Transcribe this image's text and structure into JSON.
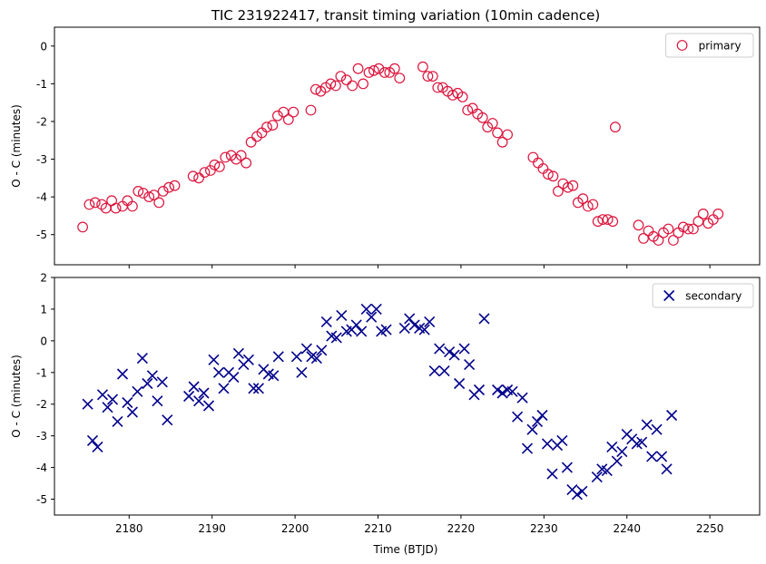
{
  "chart_data": [
    {
      "type": "scatter",
      "title": "TIC 231922417, transit timing variation (10min cadence)",
      "xlabel": "",
      "ylabel": "O - C (minutes)",
      "xlim": [
        2171,
        2256
      ],
      "ylim": [
        -5.8,
        0.5
      ],
      "yticks": [
        0,
        -1,
        -2,
        -3,
        -4,
        -5
      ],
      "xticks": [
        2180,
        2190,
        2200,
        2210,
        2220,
        2230,
        2240,
        2250
      ],
      "show_xtick_labels": false,
      "legend": "top-right",
      "marker": "circle",
      "color": "#dc143c",
      "series": [
        {
          "name": "primary",
          "points": [
            [
              2174.4,
              -4.8
            ],
            [
              2175.2,
              -4.2
            ],
            [
              2175.9,
              -4.15
            ],
            [
              2176.7,
              -4.2
            ],
            [
              2177.2,
              -4.3
            ],
            [
              2177.9,
              -4.1
            ],
            [
              2178.4,
              -4.3
            ],
            [
              2179.2,
              -4.25
            ],
            [
              2179.8,
              -4.1
            ],
            [
              2180.4,
              -4.25
            ],
            [
              2181.1,
              -3.85
            ],
            [
              2181.7,
              -3.9
            ],
            [
              2182.4,
              -4.0
            ],
            [
              2183.0,
              -3.95
            ],
            [
              2183.6,
              -4.15
            ],
            [
              2184.1,
              -3.85
            ],
            [
              2184.8,
              -3.75
            ],
            [
              2185.5,
              -3.7
            ],
            [
              2187.7,
              -3.45
            ],
            [
              2188.4,
              -3.5
            ],
            [
              2189.1,
              -3.35
            ],
            [
              2189.8,
              -3.3
            ],
            [
              2190.3,
              -3.15
            ],
            [
              2190.9,
              -3.2
            ],
            [
              2191.6,
              -2.95
            ],
            [
              2192.3,
              -2.9
            ],
            [
              2192.9,
              -3.0
            ],
            [
              2193.5,
              -2.9
            ],
            [
              2194.1,
              -3.1
            ],
            [
              2194.7,
              -2.55
            ],
            [
              2195.4,
              -2.4
            ],
            [
              2196.0,
              -2.3
            ],
            [
              2196.6,
              -2.15
            ],
            [
              2197.3,
              -2.1
            ],
            [
              2197.9,
              -1.85
            ],
            [
              2198.6,
              -1.75
            ],
            [
              2199.2,
              -1.95
            ],
            [
              2199.8,
              -1.75
            ],
            [
              2201.9,
              -1.7
            ],
            [
              2202.5,
              -1.15
            ],
            [
              2203.1,
              -1.2
            ],
            [
              2203.7,
              -1.1
            ],
            [
              2204.3,
              -1.0
            ],
            [
              2204.9,
              -1.05
            ],
            [
              2205.5,
              -0.8
            ],
            [
              2206.2,
              -0.9
            ],
            [
              2206.9,
              -1.05
            ],
            [
              2207.6,
              -0.6
            ],
            [
              2208.2,
              -1.0
            ],
            [
              2208.9,
              -0.7
            ],
            [
              2209.5,
              -0.65
            ],
            [
              2210.1,
              -0.6
            ],
            [
              2210.8,
              -0.7
            ],
            [
              2211.4,
              -0.7
            ],
            [
              2212.0,
              -0.6
            ],
            [
              2212.6,
              -0.85
            ],
            [
              2215.4,
              -0.55
            ],
            [
              2216.0,
              -0.8
            ],
            [
              2216.6,
              -0.8
            ],
            [
              2217.2,
              -1.1
            ],
            [
              2217.8,
              -1.1
            ],
            [
              2218.4,
              -1.2
            ],
            [
              2219.0,
              -1.3
            ],
            [
              2219.6,
              -1.25
            ],
            [
              2220.2,
              -1.35
            ],
            [
              2220.8,
              -1.7
            ],
            [
              2221.4,
              -1.65
            ],
            [
              2222.0,
              -1.8
            ],
            [
              2222.6,
              -1.9
            ],
            [
              2223.2,
              -2.15
            ],
            [
              2223.8,
              -2.05
            ],
            [
              2224.4,
              -2.3
            ],
            [
              2225.0,
              -2.55
            ],
            [
              2225.6,
              -2.35
            ],
            [
              2228.7,
              -2.95
            ],
            [
              2229.3,
              -3.1
            ],
            [
              2229.9,
              -3.25
            ],
            [
              2230.5,
              -3.4
            ],
            [
              2231.1,
              -3.45
            ],
            [
              2231.7,
              -3.85
            ],
            [
              2232.3,
              -3.65
            ],
            [
              2232.9,
              -3.75
            ],
            [
              2233.5,
              -3.7
            ],
            [
              2234.1,
              -4.15
            ],
            [
              2234.7,
              -4.05
            ],
            [
              2235.3,
              -4.25
            ],
            [
              2235.9,
              -4.2
            ],
            [
              2236.5,
              -4.65
            ],
            [
              2237.1,
              -4.6
            ],
            [
              2237.7,
              -4.6
            ],
            [
              2238.3,
              -4.65
            ],
            [
              2238.6,
              -2.15
            ],
            [
              2241.4,
              -4.75
            ],
            [
              2242.0,
              -5.1
            ],
            [
              2242.6,
              -4.9
            ],
            [
              2243.2,
              -5.05
            ],
            [
              2243.8,
              -5.15
            ],
            [
              2244.4,
              -4.95
            ],
            [
              2245.0,
              -4.85
            ],
            [
              2245.6,
              -5.15
            ],
            [
              2246.2,
              -4.95
            ],
            [
              2246.8,
              -4.8
            ],
            [
              2247.4,
              -4.85
            ],
            [
              2248.0,
              -4.85
            ],
            [
              2248.6,
              -4.65
            ],
            [
              2249.2,
              -4.45
            ],
            [
              2249.8,
              -4.7
            ],
            [
              2250.4,
              -4.6
            ],
            [
              2251.0,
              -4.45
            ]
          ]
        }
      ]
    },
    {
      "type": "scatter",
      "title": "",
      "xlabel": "Time (BTJD)",
      "ylabel": "O - C (minutes)",
      "xlim": [
        2171,
        2256
      ],
      "ylim": [
        -5.5,
        2
      ],
      "yticks": [
        2,
        1,
        0,
        -1,
        -2,
        -3,
        -4,
        -5
      ],
      "xticks": [
        2180,
        2190,
        2200,
        2210,
        2220,
        2230,
        2240,
        2250
      ],
      "show_xtick_labels": true,
      "legend": "top-right",
      "marker": "x",
      "color": "#00008b",
      "series": [
        {
          "name": "secondary",
          "points": [
            [
              2175.0,
              -2.0
            ],
            [
              2175.6,
              -3.15
            ],
            [
              2176.2,
              -3.35
            ],
            [
              2176.8,
              -1.7
            ],
            [
              2177.4,
              -2.1
            ],
            [
              2178.0,
              -1.85
            ],
            [
              2178.6,
              -2.55
            ],
            [
              2179.2,
              -1.05
            ],
            [
              2179.8,
              -1.95
            ],
            [
              2180.4,
              -2.25
            ],
            [
              2181.0,
              -1.6
            ],
            [
              2181.6,
              -0.55
            ],
            [
              2182.2,
              -1.35
            ],
            [
              2182.8,
              -1.1
            ],
            [
              2183.4,
              -1.9
            ],
            [
              2184.0,
              -1.3
            ],
            [
              2184.6,
              -2.5
            ],
            [
              2187.2,
              -1.75
            ],
            [
              2187.8,
              -1.45
            ],
            [
              2188.4,
              -1.9
            ],
            [
              2189.0,
              -1.65
            ],
            [
              2189.6,
              -2.05
            ],
            [
              2190.2,
              -0.6
            ],
            [
              2190.8,
              -1.0
            ],
            [
              2191.4,
              -1.5
            ],
            [
              2192.0,
              -1.0
            ],
            [
              2192.6,
              -1.15
            ],
            [
              2193.2,
              -0.4
            ],
            [
              2193.8,
              -0.75
            ],
            [
              2194.4,
              -0.6
            ],
            [
              2195.0,
              -1.5
            ],
            [
              2195.6,
              -1.5
            ],
            [
              2196.2,
              -0.9
            ],
            [
              2196.8,
              -1.05
            ],
            [
              2197.4,
              -1.1
            ],
            [
              2198.0,
              -0.5
            ],
            [
              2200.2,
              -0.5
            ],
            [
              2200.8,
              -1.0
            ],
            [
              2201.4,
              -0.25
            ],
            [
              2202.0,
              -0.5
            ],
            [
              2202.6,
              -0.55
            ],
            [
              2203.2,
              -0.3
            ],
            [
              2203.8,
              0.6
            ],
            [
              2204.4,
              0.15
            ],
            [
              2205.0,
              0.1
            ],
            [
              2205.6,
              0.8
            ],
            [
              2206.2,
              0.3
            ],
            [
              2206.8,
              0.35
            ],
            [
              2207.4,
              0.5
            ],
            [
              2208.0,
              0.3
            ],
            [
              2208.6,
              1.0
            ],
            [
              2209.2,
              0.75
            ],
            [
              2209.8,
              1.0
            ],
            [
              2210.4,
              0.3
            ],
            [
              2211.0,
              0.35
            ],
            [
              2213.2,
              0.4
            ],
            [
              2213.8,
              0.7
            ],
            [
              2214.4,
              0.5
            ],
            [
              2215.0,
              0.4
            ],
            [
              2215.6,
              0.35
            ],
            [
              2216.2,
              0.6
            ],
            [
              2216.8,
              -0.95
            ],
            [
              2217.4,
              -0.25
            ],
            [
              2218.0,
              -0.95
            ],
            [
              2218.6,
              -0.35
            ],
            [
              2219.2,
              -0.45
            ],
            [
              2219.8,
              -1.35
            ],
            [
              2220.4,
              -0.25
            ],
            [
              2221.0,
              -0.75
            ],
            [
              2221.6,
              -1.7
            ],
            [
              2222.2,
              -1.55
            ],
            [
              2222.8,
              0.7
            ],
            [
              2224.4,
              -1.55
            ],
            [
              2225.0,
              -1.65
            ],
            [
              2225.6,
              -1.55
            ],
            [
              2226.2,
              -1.6
            ],
            [
              2226.8,
              -2.4
            ],
            [
              2227.4,
              -1.8
            ],
            [
              2228.0,
              -3.4
            ],
            [
              2228.6,
              -2.8
            ],
            [
              2229.2,
              -2.55
            ],
            [
              2229.8,
              -2.35
            ],
            [
              2230.4,
              -3.25
            ],
            [
              2231.0,
              -4.2
            ],
            [
              2231.6,
              -3.3
            ],
            [
              2232.2,
              -3.15
            ],
            [
              2232.8,
              -4.0
            ],
            [
              2233.4,
              -4.7
            ],
            [
              2234.0,
              -4.85
            ],
            [
              2234.6,
              -4.75
            ],
            [
              2236.4,
              -4.3
            ],
            [
              2237.0,
              -4.05
            ],
            [
              2237.6,
              -4.1
            ],
            [
              2238.2,
              -3.35
            ],
            [
              2238.8,
              -3.8
            ],
            [
              2239.4,
              -3.5
            ],
            [
              2240.0,
              -2.95
            ],
            [
              2240.6,
              -3.1
            ],
            [
              2241.2,
              -3.25
            ],
            [
              2241.8,
              -3.2
            ],
            [
              2242.4,
              -2.65
            ],
            [
              2243.0,
              -3.65
            ],
            [
              2243.6,
              -2.8
            ],
            [
              2244.2,
              -3.65
            ],
            [
              2244.8,
              -4.05
            ],
            [
              2245.4,
              -2.35
            ]
          ]
        }
      ]
    }
  ]
}
